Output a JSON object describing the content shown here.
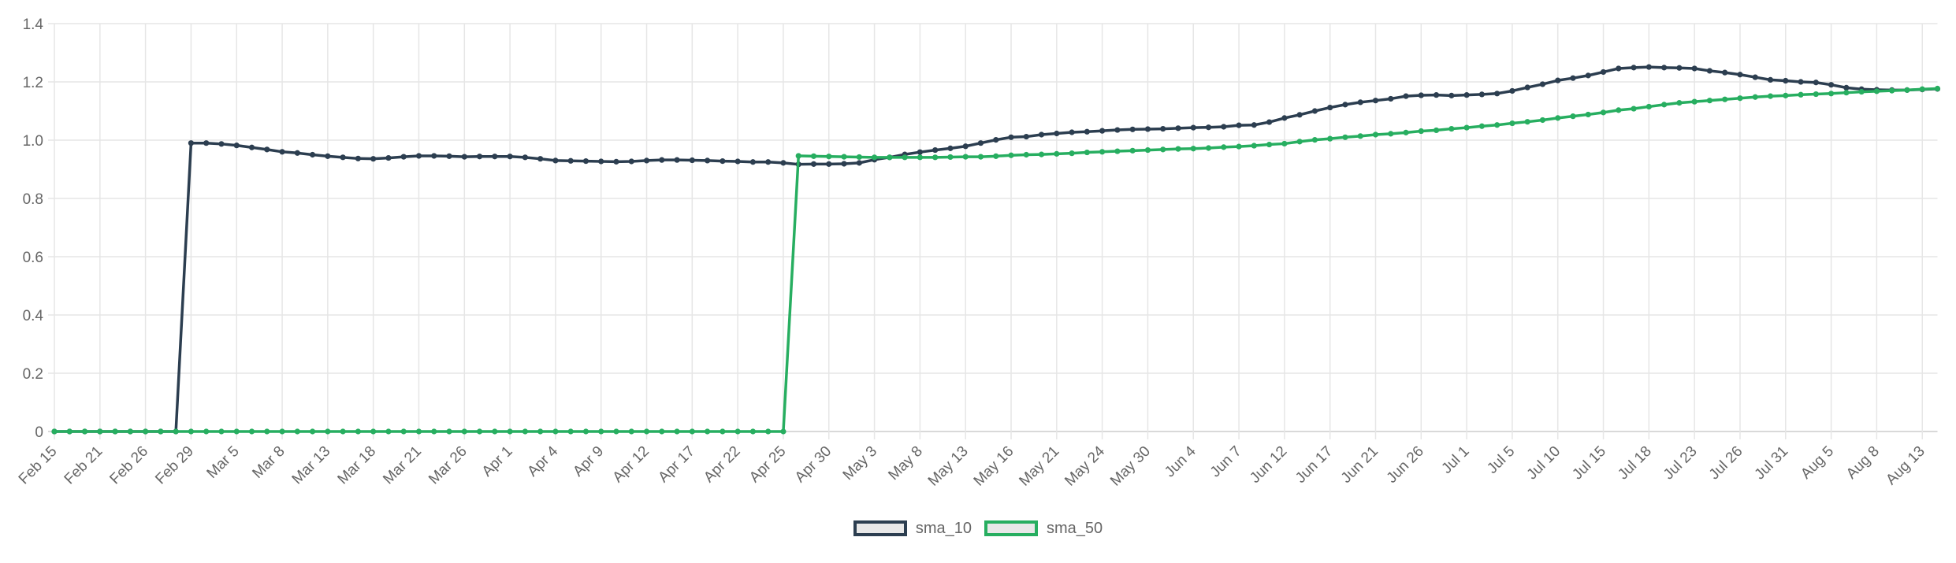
{
  "chart_data": {
    "type": "line",
    "title": "",
    "xlabel": "",
    "ylabel": "",
    "ylim": [
      0,
      1.4
    ],
    "y_ticks": [
      "0",
      "0.2",
      "0.4",
      "0.6",
      "0.8",
      "1.0",
      "1.2",
      "1.4"
    ],
    "y_tick_values": [
      0,
      0.2,
      0.4,
      0.6,
      0.8,
      1.0,
      1.2,
      1.4
    ],
    "grid": true,
    "legend_position": "bottom",
    "point_count": 125,
    "tick_every": 3,
    "x_tick_labels": [
      "Feb 15",
      "Feb 21",
      "Feb 26",
      "Feb 29",
      "Mar 5",
      "Mar 8",
      "Mar 13",
      "Mar 18",
      "Mar 21",
      "Mar 26",
      "Apr 1",
      "Apr 4",
      "Apr 9",
      "Apr 12",
      "Apr 17",
      "Apr 22",
      "Apr 25",
      "Apr 30",
      "May 3",
      "May 8",
      "May 13",
      "May 16",
      "May 21",
      "May 24",
      "May 30",
      "Jun 4",
      "Jun 7",
      "Jun 12",
      "Jun 17",
      "Jun 21",
      "Jun 26",
      "Jul 1",
      "Jul 5",
      "Jul 10",
      "Jul 15",
      "Jul 18",
      "Jul 23",
      "Jul 26",
      "Jul 31",
      "Aug 5",
      "Aug 8",
      "Aug 13"
    ],
    "series": [
      {
        "name": "sma_10",
        "color": "#2c3e50",
        "values": [
          0,
          0,
          0,
          0,
          0,
          0,
          0,
          0,
          0,
          0.99,
          0.99,
          0.987,
          0.982,
          0.975,
          0.968,
          0.96,
          0.956,
          0.95,
          0.945,
          0.941,
          0.937,
          0.936,
          0.939,
          0.943,
          0.946,
          0.946,
          0.945,
          0.943,
          0.944,
          0.944,
          0.944,
          0.941,
          0.936,
          0.93,
          0.929,
          0.928,
          0.927,
          0.926,
          0.927,
          0.93,
          0.932,
          0.932,
          0.931,
          0.93,
          0.928,
          0.927,
          0.925,
          0.925,
          0.922,
          0.917,
          0.918,
          0.918,
          0.919,
          0.922,
          0.933,
          0.941,
          0.951,
          0.959,
          0.966,
          0.972,
          0.979,
          0.99,
          1.001,
          1.01,
          1.012,
          1.019,
          1.023,
          1.027,
          1.029,
          1.032,
          1.035,
          1.037,
          1.038,
          1.039,
          1.041,
          1.043,
          1.044,
          1.046,
          1.051,
          1.052,
          1.062,
          1.076,
          1.087,
          1.1,
          1.112,
          1.122,
          1.13,
          1.136,
          1.142,
          1.151,
          1.154,
          1.155,
          1.153,
          1.155,
          1.157,
          1.16,
          1.169,
          1.181,
          1.192,
          1.205,
          1.213,
          1.222,
          1.234,
          1.246,
          1.249,
          1.251,
          1.249,
          1.248,
          1.246,
          1.238,
          1.232,
          1.225,
          1.216,
          1.207,
          1.204,
          1.2,
          1.198,
          1.19,
          1.18,
          1.175,
          1.173,
          1.172,
          1.172,
          1.174,
          1.176
        ]
      },
      {
        "name": "sma_50",
        "color": "#27ae60",
        "values": [
          0,
          0,
          0,
          0,
          0,
          0,
          0,
          0,
          0,
          0,
          0,
          0,
          0,
          0,
          0,
          0,
          0,
          0,
          0,
          0,
          0,
          0,
          0,
          0,
          0,
          0,
          0,
          0,
          0,
          0,
          0,
          0,
          0,
          0,
          0,
          0,
          0,
          0,
          0,
          0,
          0,
          0,
          0,
          0,
          0,
          0,
          0,
          0,
          0,
          0.946,
          0.945,
          0.944,
          0.943,
          0.942,
          0.941,
          0.941,
          0.941,
          0.941,
          0.941,
          0.942,
          0.943,
          0.943,
          0.945,
          0.948,
          0.95,
          0.951,
          0.953,
          0.955,
          0.958,
          0.96,
          0.962,
          0.964,
          0.966,
          0.968,
          0.97,
          0.971,
          0.973,
          0.976,
          0.978,
          0.981,
          0.985,
          0.988,
          0.995,
          1.001,
          1.005,
          1.01,
          1.014,
          1.019,
          1.022,
          1.026,
          1.031,
          1.034,
          1.039,
          1.043,
          1.048,
          1.052,
          1.058,
          1.063,
          1.069,
          1.076,
          1.082,
          1.088,
          1.095,
          1.103,
          1.108,
          1.115,
          1.122,
          1.128,
          1.132,
          1.136,
          1.14,
          1.144,
          1.148,
          1.151,
          1.153,
          1.156,
          1.158,
          1.16,
          1.163,
          1.166,
          1.168,
          1.17,
          1.172,
          1.175,
          1.177
        ]
      }
    ]
  },
  "legend": {
    "items": [
      {
        "label": "sma_10",
        "color": "#2c3e50"
      },
      {
        "label": "sma_50",
        "color": "#27ae60"
      }
    ]
  },
  "style": {
    "grid_color": "#e6e6e6",
    "axis_color": "#d9d9d9",
    "text_color": "#666666",
    "legend_fill": "#e8e8e8"
  }
}
